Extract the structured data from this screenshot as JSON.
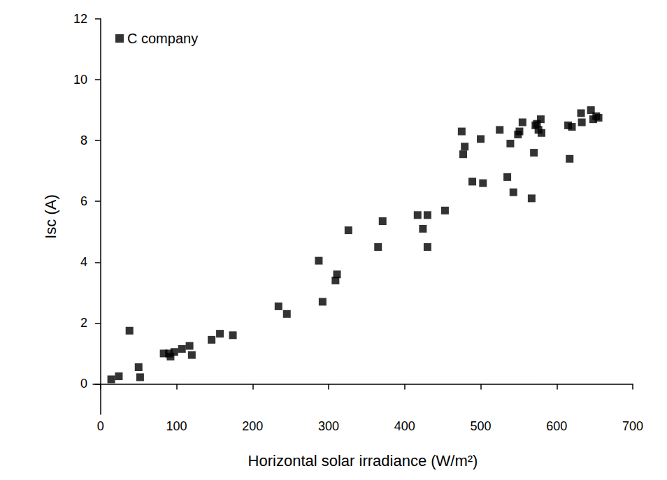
{
  "chart_data": {
    "type": "scatter",
    "x_label": "Horizontal solar irradiance (W/m²)",
    "y_label": "Isc (A)",
    "xlim": [
      -10,
      700
    ],
    "xticks": [
      0,
      100,
      200,
      300,
      400,
      500,
      600,
      700
    ],
    "ylim": [
      -1,
      12
    ],
    "yticks": [
      0,
      2,
      4,
      6,
      8,
      10,
      12
    ],
    "grid": false,
    "legend": "upper left",
    "series": [
      {
        "name": "C company",
        "color": "#000000",
        "marker": "square",
        "x": [
          14,
          24,
          38,
          50,
          52,
          83,
          90,
          92,
          97,
          107,
          117,
          120,
          146,
          157,
          174,
          234,
          245,
          287,
          292,
          309,
          311,
          326,
          365,
          371,
          417,
          424,
          430,
          430,
          453,
          475,
          477,
          479,
          489,
          500,
          503,
          525,
          535,
          539,
          543,
          549,
          551,
          555,
          567,
          570,
          572,
          574,
          576,
          579,
          580,
          615,
          617,
          620,
          632,
          633,
          645,
          648,
          652,
          655
        ],
        "values": [
          0.15,
          0.25,
          1.75,
          0.55,
          0.22,
          1.0,
          1.0,
          0.9,
          1.05,
          1.15,
          1.25,
          0.95,
          1.45,
          1.65,
          1.6,
          2.55,
          2.3,
          4.05,
          2.7,
          3.4,
          3.6,
          5.05,
          4.5,
          5.35,
          5.55,
          5.1,
          5.55,
          4.5,
          5.7,
          8.3,
          7.55,
          7.8,
          6.65,
          8.05,
          6.6,
          8.35,
          6.8,
          7.9,
          6.3,
          8.2,
          8.3,
          8.6,
          6.1,
          7.6,
          8.5,
          8.55,
          8.35,
          8.7,
          8.25,
          8.5,
          7.4,
          8.45,
          8.9,
          8.6,
          9.0,
          8.7,
          8.8,
          8.75
        ]
      }
    ]
  }
}
